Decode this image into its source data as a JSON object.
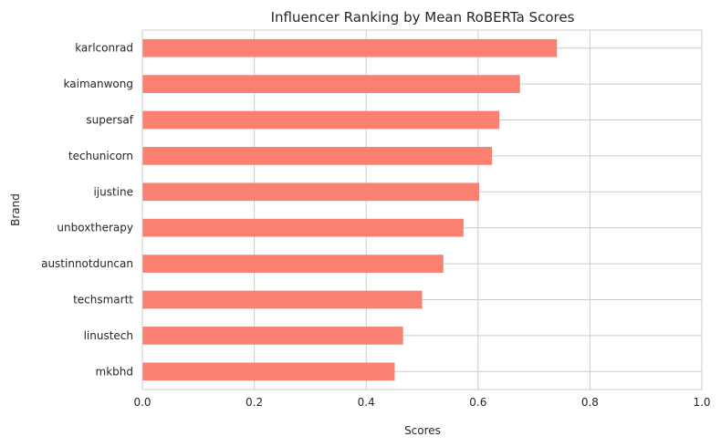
{
  "chart_data": {
    "type": "bar",
    "orientation": "horizontal",
    "title": "Influencer Ranking by Mean RoBERTa Scores",
    "xlabel": "Scores",
    "ylabel": "Brand",
    "xlim": [
      0.0,
      1.0
    ],
    "xticks": [
      0.0,
      0.2,
      0.4,
      0.6,
      0.8,
      1.0
    ],
    "xtick_labels": [
      "0.0",
      "0.2",
      "0.4",
      "0.6",
      "0.8",
      "1.0"
    ],
    "categories": [
      "karlconrad",
      "kaimanwong",
      "supersaf",
      "techunicorn",
      "ijustine",
      "unboxtherapy",
      "austinnotduncan",
      "techsmartt",
      "linustech",
      "mkbhd"
    ],
    "values": [
      0.741,
      0.675,
      0.638,
      0.625,
      0.602,
      0.574,
      0.538,
      0.5,
      0.466,
      0.451
    ],
    "bar_color": "#fa8072",
    "grid": true,
    "legend": "none"
  }
}
